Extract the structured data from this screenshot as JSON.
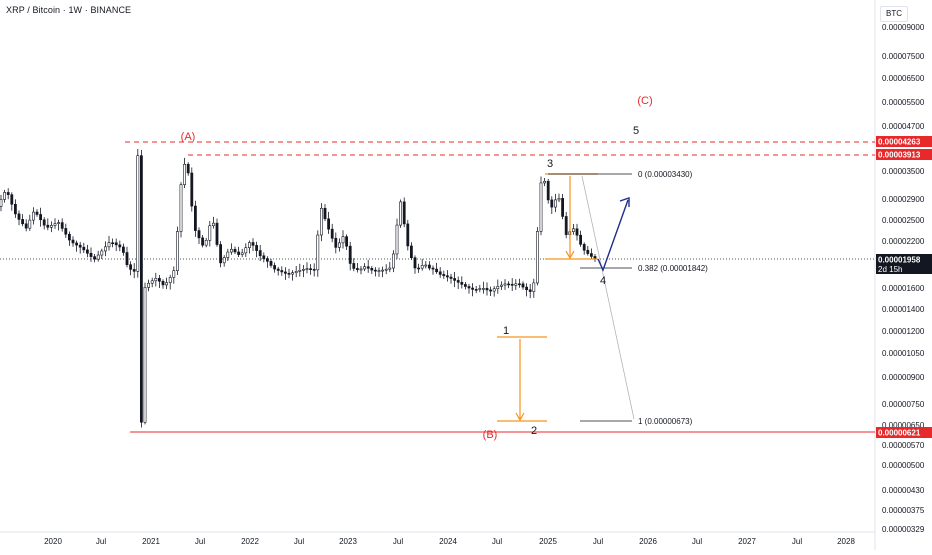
{
  "header": {
    "title": "XRP / Bitcoin · 1W · BINANCE"
  },
  "currency_button": {
    "label": "BTC"
  },
  "colors": {
    "candle": "#131722",
    "red": "#e8292b",
    "orange": "#f7931a",
    "blue": "#1f2d8c",
    "black": "#131722",
    "axis_text": "#131722"
  },
  "chart_data": {
    "type": "candlestick",
    "symbol": "XRP / Bitcoin",
    "interval": "1W",
    "exchange": "BINANCE",
    "y_scale": "log",
    "ylim": [
      3.29e-06,
      9e-06
    ],
    "x_tick_labels": [
      "2020",
      "Jul",
      "2021",
      "Jul",
      "2022",
      "Jul",
      "2023",
      "Jul",
      "2024",
      "Jul",
      "2025",
      "Jul",
      "2026",
      "Jul",
      "2027",
      "Jul",
      "2028"
    ],
    "y_tick_labels": [
      "0.00009000",
      "0.00007500",
      "0.00006500",
      "0.00005500",
      "0.00004700",
      "0.00003500",
      "0.00002900",
      "0.00002500",
      "0.00002200",
      "0.00001600",
      "0.00001400",
      "0.00001200",
      "0.00001050",
      "0.00000900",
      "0.00000750",
      "0.00000650",
      "0.00000570",
      "0.00000500",
      "0.00000430",
      "0.00000375",
      "0.00000329"
    ],
    "price_tags": [
      {
        "value": "0.00004263",
        "style": "red"
      },
      {
        "value": "0.00003913",
        "style": "red"
      },
      {
        "value": "0.00001958",
        "sub": "2d 15h",
        "style": "black"
      },
      {
        "value": "0.00000621",
        "style": "red"
      }
    ],
    "horizontal_lines": [
      {
        "value": 4.263e-05,
        "style": "dashed",
        "color": "red"
      },
      {
        "value": 3.913e-05,
        "style": "dashed",
        "color": "red"
      },
      {
        "value": 6.21e-06,
        "style": "solid",
        "color": "red"
      },
      {
        "value": 1.958e-05,
        "style": "dotted",
        "color": "black"
      }
    ],
    "fib_levels": [
      {
        "label": "0 (0.00003430)",
        "value": 3.43e-05
      },
      {
        "label": "0.382 (0.00001842)",
        "value": 1.842e-05
      },
      {
        "label": "1 (0.00000673)",
        "value": 6.73e-06
      }
    ],
    "wave_labels": [
      {
        "text": "(A)",
        "color": "red"
      },
      {
        "text": "(B)",
        "color": "red"
      },
      {
        "text": "(C)",
        "color": "red"
      },
      {
        "text": "1",
        "color": "black"
      },
      {
        "text": "2",
        "color": "black"
      },
      {
        "text": "3",
        "color": "black"
      },
      {
        "text": "4",
        "color": "black"
      },
      {
        "text": "5",
        "color": "black"
      }
    ]
  }
}
